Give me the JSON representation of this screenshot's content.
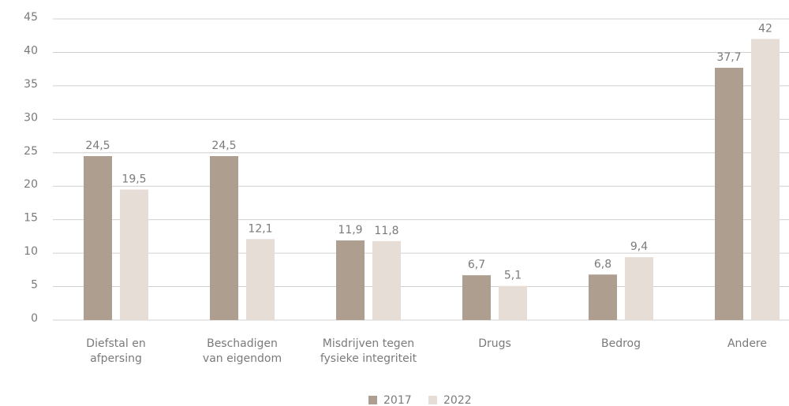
{
  "chart_data": {
    "type": "bar",
    "categories": [
      "Diefstal en\nafpersing",
      "Beschadigen\nvan eigendom",
      "Misdrijven tegen\nfysieke integriteit",
      "Drugs",
      "Bedrog",
      "Andere"
    ],
    "series": [
      {
        "name": "2017",
        "color": "#ae9e8f",
        "values": [
          24.5,
          24.5,
          11.9,
          6.7,
          6.8,
          37.7
        ],
        "value_labels": [
          "24,5",
          "24,5",
          "11,9",
          "6,7",
          "6,8",
          "37,7"
        ]
      },
      {
        "name": "2022",
        "color": "#e6ddd7",
        "values": [
          19.5,
          12.1,
          11.8,
          5.1,
          9.4,
          42
        ],
        "value_labels": [
          "19,5",
          "12,1",
          "11,8",
          "5,1",
          "9,4",
          "42"
        ]
      }
    ],
    "ylim": [
      0,
      45
    ],
    "yticks": [
      0,
      5,
      10,
      15,
      20,
      25,
      30,
      35,
      40,
      45
    ],
    "grid": true,
    "legend": "bottom"
  }
}
